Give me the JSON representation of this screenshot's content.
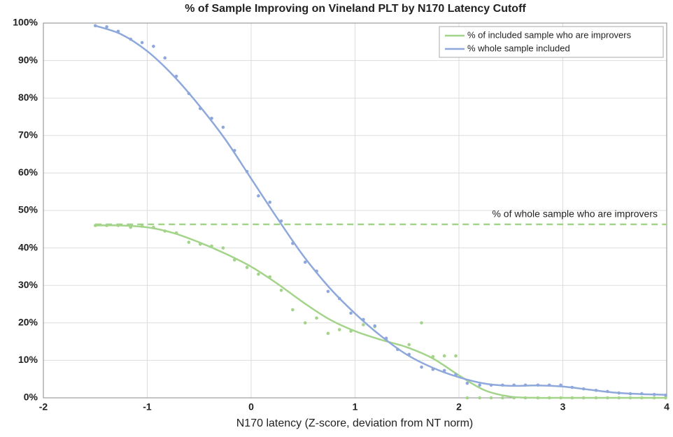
{
  "chart_data": {
    "type": "scatter",
    "title": "% of Sample Improving on Vineland PLT by N170 Latency Cutoff",
    "xlabel": "N170 latency (Z-score, deviation from NT norm)",
    "xlim": [
      -2,
      4
    ],
    "xticks": [
      -2,
      -1,
      0,
      1,
      2,
      3,
      4
    ],
    "ylim": [
      0,
      100
    ],
    "yticks": [
      {
        "value": 0,
        "label": "0%"
      },
      {
        "value": 10,
        "label": "10%"
      },
      {
        "value": 20,
        "label": "20%"
      },
      {
        "value": 30,
        "label": "30%"
      },
      {
        "value": 40,
        "label": "40%"
      },
      {
        "value": 50,
        "label": "50%"
      },
      {
        "value": 60,
        "label": "60%"
      },
      {
        "value": 70,
        "label": "70%"
      },
      {
        "value": 80,
        "label": "80%"
      },
      {
        "value": 90,
        "label": "90%"
      },
      {
        "value": 100,
        "label": "100%"
      }
    ],
    "grid": true,
    "legend": "top-right",
    "x": [
      -1.5,
      -1.39,
      -1.28,
      -1.16,
      -1.05,
      -0.94,
      -0.83,
      -0.72,
      -0.6,
      -0.49,
      -0.38,
      -0.27,
      -0.16,
      -0.04,
      0.07,
      0.18,
      0.29,
      0.4,
      0.52,
      0.63,
      0.74,
      0.85,
      0.96,
      1.08,
      1.19,
      1.3,
      1.41,
      1.52,
      1.64,
      1.75,
      1.86,
      1.97,
      2.08,
      2.2,
      2.31,
      2.42,
      2.53,
      2.64,
      2.76,
      2.87,
      2.98,
      3.09,
      3.2,
      3.32,
      3.43,
      3.54,
      3.65,
      3.76,
      3.88,
      3.99
    ],
    "series": [
      {
        "name": "% of included sample who are improvers",
        "color": "#a3d48a",
        "values": [
          46.0,
          46.0,
          46.0,
          45.5,
          45.8,
          45.5,
          44.5,
          44.0,
          41.5,
          41.0,
          40.5,
          40.0,
          36.8,
          34.8,
          33.0,
          32.3,
          28.7,
          23.5,
          20.0,
          21.3,
          17.2,
          18.2,
          17.8,
          19.5,
          19.0,
          15.5,
          13.0,
          14.2,
          20.0,
          11.0,
          11.2,
          11.2,
          0,
          0,
          0,
          0,
          0,
          0,
          0,
          0,
          0,
          0,
          0,
          0,
          0,
          0,
          0,
          0,
          0,
          0
        ],
        "fit": {
          "x": [
            -1.5,
            -1.25,
            -1,
            -0.75,
            -0.5,
            -0.25,
            0,
            0.25,
            0.5,
            0.75,
            1,
            1.25,
            1.5,
            1.75,
            2,
            2.25,
            2.5,
            2.75,
            3,
            3.25,
            3.5,
            3.75,
            4
          ],
          "values": [
            46,
            46,
            45.5,
            44,
            41.5,
            38.5,
            35,
            30.5,
            25.5,
            21,
            17.8,
            15.5,
            13.5,
            10.5,
            6,
            2,
            0.3,
            0,
            0,
            0,
            0,
            0,
            0
          ]
        }
      },
      {
        "name": "% whole sample included",
        "color": "#8ea8dc",
        "values": [
          99.3,
          99.0,
          97.8,
          95.7,
          94.8,
          93.8,
          90.7,
          85.8,
          81.2,
          77.2,
          74.6,
          72.2,
          66.0,
          60.4,
          53.9,
          52.2,
          47.2,
          41.2,
          36.2,
          33.8,
          28.4,
          26.5,
          22.6,
          20.9,
          19.2,
          15.9,
          12.9,
          11.6,
          8.2,
          7.6,
          7.3,
          6.2,
          3.9,
          3.4,
          3.4,
          3.4,
          3.4,
          3.4,
          3.4,
          3.4,
          3.4,
          2.8,
          2.4,
          2.0,
          1.7,
          1.3,
          1.1,
          1.1,
          0.9,
          0.7
        ],
        "fit": {
          "x": [
            -1.5,
            -1.25,
            -1,
            -0.75,
            -0.5,
            -0.25,
            0,
            0.25,
            0.5,
            0.75,
            1,
            1.25,
            1.5,
            1.75,
            2,
            2.25,
            2.5,
            2.75,
            3,
            3.25,
            3.5,
            3.75,
            4
          ],
          "values": [
            99.3,
            97,
            92.5,
            86,
            78,
            69,
            58.5,
            48,
            38,
            29.5,
            22.5,
            16.5,
            11.5,
            8,
            5.5,
            3.8,
            3.2,
            3.3,
            3.0,
            2.2,
            1.4,
            1.0,
            0.8
          ]
        }
      }
    ],
    "reference": {
      "value": 46.3,
      "label": "% of whole sample who are improvers",
      "color": "#a3d48a"
    }
  }
}
